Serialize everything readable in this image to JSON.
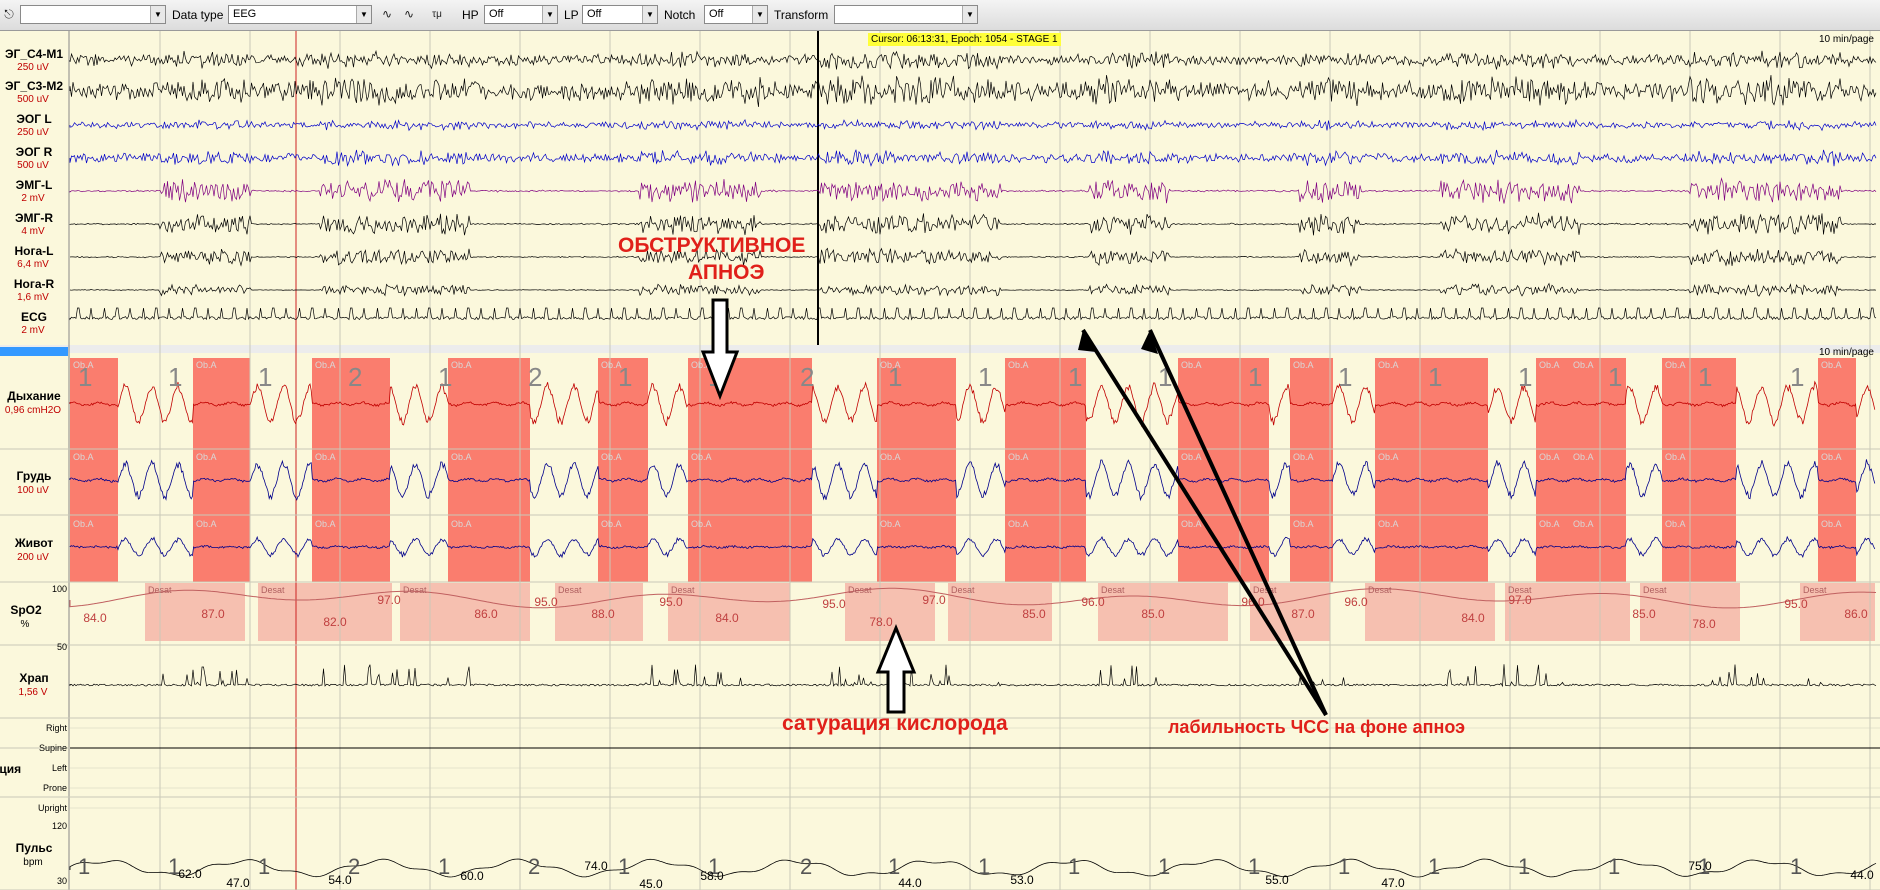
{
  "toolbar": {
    "first_select_value": "",
    "data_type_label": "Data type",
    "data_type_value": "EEG",
    "hp_label": "HP",
    "hp_value": "Off",
    "lp_label": "LP",
    "lp_value": "Off",
    "notch_label": "Notch",
    "notch_value": "Off",
    "transform_label": "Transform",
    "transform_value": "",
    "icons": [
      "montage-icon",
      "wave-icon",
      "wave-icon",
      "tau-icon"
    ]
  },
  "cursor_info": "Cursor: 06:13:31, Epoch: 1054 - STAGE 1",
  "per_page": "10 min/page",
  "channels_top": [
    {
      "name": "ЭГ_C4-M1",
      "scale": "250 uV",
      "color": "#000000"
    },
    {
      "name": "ЭГ_C3-M2",
      "scale": "500 uV",
      "color": "#000000"
    },
    {
      "name": "ЭОГ L",
      "scale": "250 uV",
      "color": "#0000c8"
    },
    {
      "name": "ЭОГ R",
      "scale": "500 uV",
      "color": "#0000c8"
    },
    {
      "name": "ЭМГ-L",
      "scale": "2 mV",
      "color": "#800080"
    },
    {
      "name": "ЭМГ-R",
      "scale": "4 mV",
      "color": "#000000"
    },
    {
      "name": "Нога-L",
      "scale": "6,4 mV",
      "color": "#000000"
    },
    {
      "name": "Нога-R",
      "scale": "1,6 mV",
      "color": "#000000"
    },
    {
      "name": "ECG",
      "scale": "2 mV",
      "color": "#000000"
    }
  ],
  "channels_bottom": [
    {
      "name": "Дыхание",
      "scale": "0,96 cmH2O"
    },
    {
      "name": "Грудь",
      "scale": "100 uV"
    },
    {
      "name": "Живот",
      "scale": "200 uV"
    },
    {
      "name": "SpO2",
      "scale": "%"
    },
    {
      "name": "Храп",
      "scale": "1,56 V"
    },
    {
      "name": "зиция",
      "scale": ""
    },
    {
      "name": "Пульс",
      "scale": "bpm"
    }
  ],
  "spo2_axis": {
    "top": "100",
    "bottom": "50"
  },
  "pulse_axis": {
    "top": "120",
    "bottom": "30"
  },
  "position_labels": [
    "Right",
    "Supine",
    "Left",
    "Prone",
    "Upright"
  ],
  "apnea_label": "Ob.A",
  "desat_label": "Desat",
  "stage_digits": [
    "1",
    "1",
    "1",
    "2",
    "1",
    "2",
    "1",
    "1",
    "2",
    "1",
    "1",
    "1",
    "1",
    "1",
    "1",
    "1",
    "1",
    "1",
    "1",
    "1"
  ],
  "spo2_values": [
    "84.0",
    "87.0",
    "82.0",
    "97.0",
    "86.0",
    "95.0",
    "88.0",
    "95.0",
    "84.0",
    "95.0",
    "78.0",
    "97.0",
    "85.0",
    "96.0",
    "85.0",
    "96.0",
    "87.0",
    "96.0",
    "84.0",
    "97.0",
    "85.0",
    "78.0",
    "95.0",
    "86.0"
  ],
  "pulse_values": [
    "62.0",
    "47.0",
    "54.0",
    "60.0",
    "74.0",
    "45.0",
    "58.0",
    "44.0",
    "53.0",
    "55.0",
    "47.0",
    "75.0",
    "44.0"
  ],
  "annotations": {
    "apnea_title_1": "ОБСТРУКТИВНОЕ",
    "apnea_title_2": "АПНОЭ",
    "saturation": "сатурация кислорода",
    "hr_lability": "лабильность ЧСС на фоне апноэ"
  },
  "colors": {
    "apnea": "#fa7d6e",
    "desat": "#f6c0b0",
    "eeg": "#000000",
    "eog": "#0000c8",
    "emg": "#800080",
    "flow": "#c00000",
    "chest": "#00008b",
    "annotation": "#e0201a"
  }
}
